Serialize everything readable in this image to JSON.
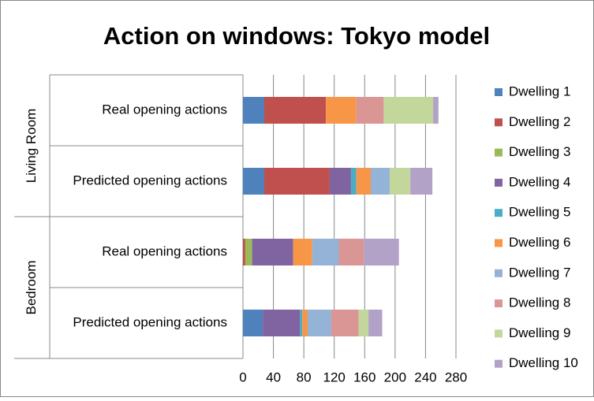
{
  "chart_data": {
    "type": "bar",
    "orientation": "horizontal",
    "stacked": true,
    "title": "Action on windows: Tokyo model",
    "categories": [
      "Real opening actions",
      "Predicted opening actions",
      "Real opening actions",
      "Predicted opening actions"
    ],
    "groups": [
      {
        "label": "Living Room",
        "categories": [
          0,
          1
        ]
      },
      {
        "label": "Bedroom",
        "categories": [
          2,
          3
        ]
      }
    ],
    "series": [
      {
        "name": "Dwelling 1",
        "color": "#4F81BD",
        "values": [
          28,
          28,
          0,
          26
        ]
      },
      {
        "name": "Dwelling 2",
        "color": "#C0504D",
        "values": [
          81,
          86,
          3,
          0
        ]
      },
      {
        "name": "Dwelling 3",
        "color": "#9BBB59",
        "values": [
          0,
          0,
          9,
          0
        ]
      },
      {
        "name": "Dwelling 4",
        "color": "#8064A2",
        "values": [
          0,
          28,
          54,
          49
        ]
      },
      {
        "name": "Dwelling 5",
        "color": "#4BACC6",
        "values": [
          0,
          7,
          0,
          3
        ]
      },
      {
        "name": "Dwelling 6",
        "color": "#F79646",
        "values": [
          40,
          19,
          25,
          7
        ]
      },
      {
        "name": "Dwelling 7",
        "color": "#95B3D7",
        "values": [
          0,
          25,
          35,
          31
        ]
      },
      {
        "name": "Dwelling 8",
        "color": "#D99694",
        "values": [
          36,
          0,
          33,
          36
        ]
      },
      {
        "name": "Dwelling 9",
        "color": "#C3D69B",
        "values": [
          65,
          27,
          0,
          13
        ]
      },
      {
        "name": "Dwelling 10",
        "color": "#B2A2C7",
        "values": [
          7,
          29,
          46,
          18
        ]
      }
    ],
    "xlim": [
      0,
      280
    ],
    "xticks": [
      0,
      40,
      80,
      120,
      160,
      200,
      240,
      280
    ],
    "grid": true,
    "legend": "right"
  }
}
